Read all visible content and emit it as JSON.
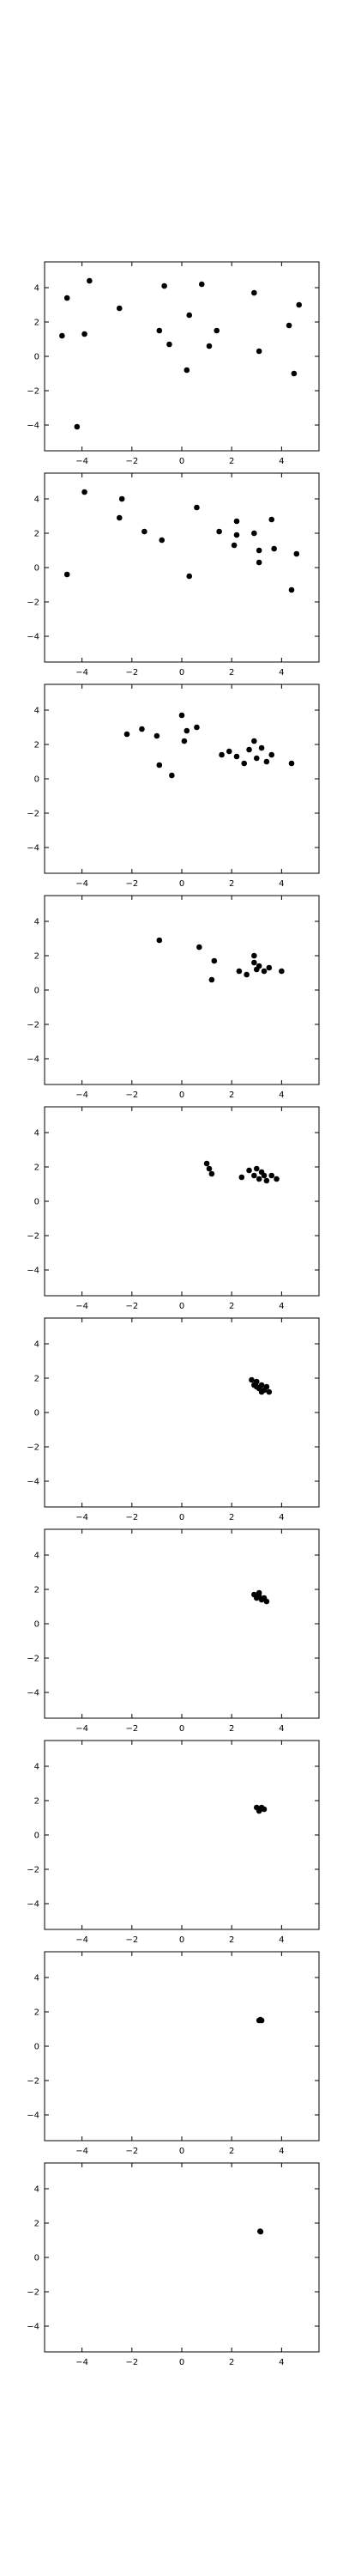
{
  "chart_data": [
    {
      "type": "scatter",
      "title": "",
      "xlabel": "",
      "ylabel": "",
      "xlim": [
        -5.5,
        5.5
      ],
      "ylim": [
        -5.5,
        5.5
      ],
      "xticks": [
        "−4",
        "−2",
        "0",
        "2",
        "4"
      ],
      "yticks": [
        "4",
        "2",
        "0",
        "−2",
        "−4"
      ],
      "background": "contour",
      "points": [
        [
          -4.6,
          3.4
        ],
        [
          -3.7,
          4.4
        ],
        [
          -4.8,
          1.2
        ],
        [
          -3.9,
          1.3
        ],
        [
          -2.5,
          2.8
        ],
        [
          -4.2,
          -4.1
        ],
        [
          -0.7,
          4.1
        ],
        [
          -0.9,
          1.5
        ],
        [
          -0.5,
          0.7
        ],
        [
          0.3,
          2.4
        ],
        [
          0.8,
          4.2
        ],
        [
          1.4,
          1.5
        ],
        [
          1.1,
          0.6
        ],
        [
          0.2,
          -0.8
        ],
        [
          2.9,
          3.7
        ],
        [
          3.1,
          0.3
        ],
        [
          4.3,
          1.8
        ],
        [
          4.7,
          3.0
        ],
        [
          4.5,
          -1.0
        ]
      ]
    },
    {
      "type": "scatter",
      "title": "",
      "xlabel": "",
      "ylabel": "",
      "xlim": [
        -5.5,
        5.5
      ],
      "ylim": [
        -5.5,
        5.5
      ],
      "xticks": [
        "−4",
        "−2",
        "0",
        "2",
        "4"
      ],
      "yticks": [
        "4",
        "2",
        "0",
        "−2",
        "−4"
      ],
      "background": "contour",
      "points": [
        [
          -3.9,
          4.4
        ],
        [
          -2.4,
          4.0
        ],
        [
          -2.5,
          2.9
        ],
        [
          -4.6,
          -0.4
        ],
        [
          -1.5,
          2.1
        ],
        [
          -0.8,
          1.6
        ],
        [
          0.6,
          3.5
        ],
        [
          0.3,
          -0.5
        ],
        [
          1.5,
          2.1
        ],
        [
          2.2,
          2.7
        ],
        [
          2.2,
          1.9
        ],
        [
          2.1,
          1.3
        ],
        [
          2.9,
          2.0
        ],
        [
          3.1,
          1.0
        ],
        [
          3.1,
          0.3
        ],
        [
          3.7,
          1.1
        ],
        [
          3.6,
          2.8
        ],
        [
          4.6,
          0.8
        ],
        [
          4.4,
          -1.3
        ]
      ]
    },
    {
      "type": "scatter",
      "title": "",
      "xlabel": "",
      "ylabel": "",
      "xlim": [
        -5.5,
        5.5
      ],
      "ylim": [
        -5.5,
        5.5
      ],
      "xticks": [
        "−4",
        "−2",
        "0",
        "2",
        "4"
      ],
      "yticks": [
        "4",
        "2",
        "0",
        "−2",
        "−4"
      ],
      "background": "contour",
      "points": [
        [
          -2.2,
          2.6
        ],
        [
          -1.6,
          2.9
        ],
        [
          -1.0,
          2.5
        ],
        [
          -0.9,
          0.8
        ],
        [
          -0.4,
          0.2
        ],
        [
          0.0,
          3.7
        ],
        [
          0.2,
          2.8
        ],
        [
          0.1,
          2.2
        ],
        [
          0.6,
          3.0
        ],
        [
          1.6,
          1.4
        ],
        [
          1.9,
          1.6
        ],
        [
          2.2,
          1.3
        ],
        [
          2.5,
          0.9
        ],
        [
          2.7,
          1.7
        ],
        [
          2.9,
          2.2
        ],
        [
          3.0,
          1.2
        ],
        [
          3.2,
          1.8
        ],
        [
          3.4,
          1.0
        ],
        [
          3.6,
          1.4
        ],
        [
          4.4,
          0.9
        ]
      ]
    },
    {
      "type": "scatter",
      "title": "",
      "xlabel": "",
      "ylabel": "",
      "xlim": [
        -5.5,
        5.5
      ],
      "ylim": [
        -5.5,
        5.5
      ],
      "xticks": [
        "−4",
        "−2",
        "0",
        "2",
        "4"
      ],
      "yticks": [
        "4",
        "2",
        "0",
        "−2",
        "−4"
      ],
      "background": "contour",
      "points": [
        [
          -0.9,
          2.9
        ],
        [
          0.7,
          2.5
        ],
        [
          1.3,
          1.7
        ],
        [
          1.2,
          0.6
        ],
        [
          2.3,
          1.1
        ],
        [
          2.6,
          0.9
        ],
        [
          2.9,
          1.6
        ],
        [
          2.9,
          2.0
        ],
        [
          3.1,
          1.4
        ],
        [
          3.3,
          1.1
        ],
        [
          3.0,
          1.2
        ],
        [
          3.5,
          1.3
        ],
        [
          4.0,
          1.1
        ]
      ]
    },
    {
      "type": "scatter",
      "title": "",
      "xlabel": "",
      "ylabel": "",
      "xlim": [
        -5.5,
        5.5
      ],
      "ylim": [
        -5.5,
        5.5
      ],
      "xticks": [
        "−4",
        "−2",
        "0",
        "2",
        "4"
      ],
      "yticks": [
        "4",
        "2",
        "0",
        "−2",
        "−4"
      ],
      "background": "contour",
      "points": [
        [
          1.0,
          2.2
        ],
        [
          1.1,
          1.9
        ],
        [
          1.2,
          1.6
        ],
        [
          2.4,
          1.4
        ],
        [
          2.7,
          1.8
        ],
        [
          2.9,
          1.5
        ],
        [
          3.0,
          1.9
        ],
        [
          3.1,
          1.3
        ],
        [
          3.2,
          1.7
        ],
        [
          3.3,
          1.5
        ],
        [
          3.4,
          1.2
        ],
        [
          3.6,
          1.5
        ],
        [
          3.8,
          1.3
        ]
      ]
    },
    {
      "type": "scatter",
      "title": "",
      "xlabel": "",
      "ylabel": "",
      "xlim": [
        -5.5,
        5.5
      ],
      "ylim": [
        -5.5,
        5.5
      ],
      "xticks": [
        "−4",
        "−2",
        "0",
        "2",
        "4"
      ],
      "yticks": [
        "4",
        "2",
        "0",
        "−2",
        "−4"
      ],
      "background": "contour",
      "points": [
        [
          2.8,
          1.9
        ],
        [
          2.9,
          1.6
        ],
        [
          3.0,
          1.8
        ],
        [
          3.1,
          1.4
        ],
        [
          3.2,
          1.6
        ],
        [
          3.3,
          1.3
        ],
        [
          3.4,
          1.5
        ],
        [
          3.5,
          1.2
        ],
        [
          3.0,
          1.5
        ],
        [
          3.2,
          1.2
        ]
      ]
    },
    {
      "type": "scatter",
      "title": "",
      "xlabel": "",
      "ylabel": "",
      "xlim": [
        -5.5,
        5.5
      ],
      "ylim": [
        -5.5,
        5.5
      ],
      "xticks": [
        "−4",
        "−2",
        "0",
        "2",
        "4"
      ],
      "yticks": [
        "4",
        "2",
        "0",
        "−2",
        "−4"
      ],
      "background": "contour",
      "points": [
        [
          2.9,
          1.7
        ],
        [
          3.0,
          1.5
        ],
        [
          3.1,
          1.6
        ],
        [
          3.2,
          1.4
        ],
        [
          3.3,
          1.5
        ],
        [
          3.1,
          1.8
        ],
        [
          3.4,
          1.3
        ]
      ]
    },
    {
      "type": "scatter",
      "title": "",
      "xlabel": "",
      "ylabel": "",
      "xlim": [
        -5.5,
        5.5
      ],
      "ylim": [
        -5.5,
        5.5
      ],
      "xticks": [
        "−4",
        "−2",
        "0",
        "2",
        "4"
      ],
      "yticks": [
        "4",
        "2",
        "0",
        "−2",
        "−4"
      ],
      "background": "contour",
      "points": [
        [
          3.0,
          1.6
        ],
        [
          3.1,
          1.5
        ],
        [
          3.2,
          1.6
        ],
        [
          3.1,
          1.4
        ],
        [
          3.3,
          1.5
        ]
      ]
    },
    {
      "type": "scatter",
      "title": "",
      "xlabel": "",
      "ylabel": "",
      "xlim": [
        -5.5,
        5.5
      ],
      "ylim": [
        -5.5,
        5.5
      ],
      "xticks": [
        "−4",
        "−2",
        "0",
        "2",
        "4"
      ],
      "yticks": [
        "4",
        "2",
        "0",
        "−2",
        "−4"
      ],
      "background": "contour",
      "points": [
        [
          3.1,
          1.5
        ],
        [
          3.15,
          1.55
        ],
        [
          3.2,
          1.5
        ]
      ]
    },
    {
      "type": "scatter",
      "title": "",
      "xlabel": "",
      "ylabel": "",
      "xlim": [
        -5.5,
        5.5
      ],
      "ylim": [
        -5.5,
        5.5
      ],
      "xticks": [
        "−4",
        "−2",
        "0",
        "2",
        "4"
      ],
      "yticks": [
        "4",
        "2",
        "0",
        "−2",
        "−4"
      ],
      "background": "contour",
      "points": [
        [
          3.14,
          1.52
        ],
        [
          3.16,
          1.5
        ]
      ]
    }
  ]
}
